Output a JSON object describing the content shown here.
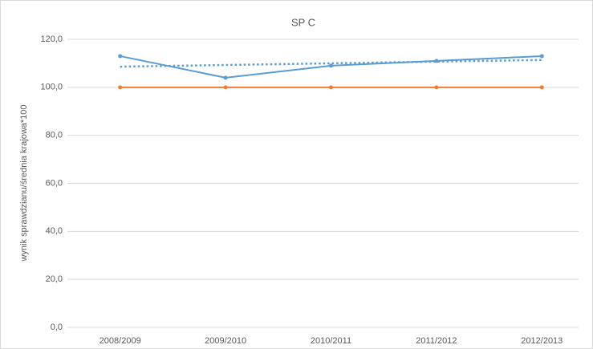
{
  "chart_data": {
    "type": "line",
    "title": "SP C",
    "y_label": "wynik sprawdzianu/średnia krajowa*100",
    "categories": [
      "2008/2009",
      "2009/2010",
      "2010/2011",
      "2011/2012",
      "2012/2013"
    ],
    "series": [
      {
        "color": "#5b9bd5",
        "values": [
          113,
          104,
          109,
          111,
          113
        ],
        "markers": true,
        "style": "solid"
      },
      {
        "color": "#ed7d31",
        "values": [
          100,
          100,
          100,
          100,
          100
        ],
        "markers": true,
        "style": "solid"
      },
      {
        "color": "#5b9bd5",
        "values": [
          108.6,
          109.3,
          110,
          110.7,
          111.4
        ],
        "markers": false,
        "style": "dotted"
      }
    ],
    "ylim": [
      0,
      120
    ],
    "yticks": [
      {
        "value": 0,
        "label": "0,0"
      },
      {
        "value": 20,
        "label": "20,0"
      },
      {
        "value": 40,
        "label": "40,0"
      },
      {
        "value": 60,
        "label": "60,0"
      },
      {
        "value": 80,
        "label": "80,0"
      },
      {
        "value": 100,
        "label": "100,0"
      },
      {
        "value": 120,
        "label": "120,0"
      }
    ],
    "grid": true
  }
}
